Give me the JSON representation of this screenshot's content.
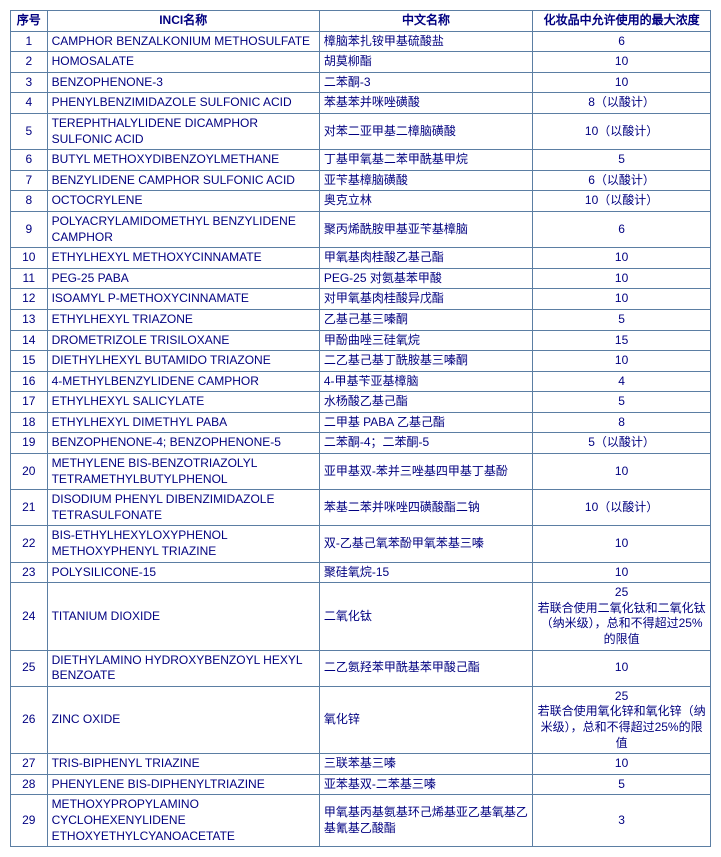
{
  "headers": {
    "idx": "序号",
    "inci": "INCI名称",
    "cn": "中文名称",
    "max": "化妆品中允许使用的最大浓度"
  },
  "rows": [
    {
      "idx": "1",
      "inci": "CAMPHOR BENZALKONIUM METHOSULFATE",
      "cn": "樟脑苯扎铵甲基硫酸盐",
      "max": "6"
    },
    {
      "idx": "2",
      "inci": "HOMOSALATE",
      "cn": "胡莫柳酯",
      "max": "10"
    },
    {
      "idx": "3",
      "inci": "BENZOPHENONE-3",
      "cn": "二苯酮-3",
      "max": "10"
    },
    {
      "idx": "4",
      "inci": "PHENYLBENZIMIDAZOLE SULFONIC ACID",
      "cn": "苯基苯并咪唑磺酸",
      "max": "8（以酸计）"
    },
    {
      "idx": "5",
      "inci": "TEREPHTHALYLIDENE DICAMPHOR SULFONIC ACID",
      "cn": "对苯二亚甲基二樟脑磺酸",
      "max": "10（以酸计）"
    },
    {
      "idx": "6",
      "inci": "BUTYL METHOXYDIBENZOYLMETHANE",
      "cn": "丁基甲氧基二苯甲酰基甲烷",
      "max": "5"
    },
    {
      "idx": "7",
      "inci": "BENZYLIDENE CAMPHOR SULFONIC ACID",
      "cn": "亚苄基樟脑磺酸",
      "max": "6（以酸计）"
    },
    {
      "idx": "8",
      "inci": "OCTOCRYLENE",
      "cn": "奥克立林",
      "max": "10（以酸计）"
    },
    {
      "idx": "9",
      "inci": "POLYACRYLAMIDOMETHYL BENZYLIDENE CAMPHOR",
      "cn": "聚丙烯酰胺甲基亚苄基樟脑",
      "max": "6"
    },
    {
      "idx": "10",
      "inci": "ETHYLHEXYL METHOXYCINNAMATE",
      "cn": "甲氧基肉桂酸乙基己酯",
      "max": "10"
    },
    {
      "idx": "11",
      "inci": "PEG-25 PABA",
      "cn": "PEG-25 对氨基苯甲酸",
      "max": "10"
    },
    {
      "idx": "12",
      "inci": "ISOAMYL P-METHOXYCINNAMATE",
      "cn": "对甲氧基肉桂酸异戊酯",
      "max": "10"
    },
    {
      "idx": "13",
      "inci": "ETHYLHEXYL TRIAZONE",
      "cn": "乙基己基三嗪酮",
      "max": "5"
    },
    {
      "idx": "14",
      "inci": "DROMETRIZOLE TRISILOXANE",
      "cn": "甲酚曲唑三硅氧烷",
      "max": "15"
    },
    {
      "idx": "15",
      "inci": "DIETHYLHEXYL BUTAMIDO TRIAZONE",
      "cn": "二乙基己基丁酰胺基三嗪酮",
      "max": "10"
    },
    {
      "idx": "16",
      "inci": "4-METHYLBENZYLIDENE CAMPHOR",
      "cn": "4-甲基苄亚基樟脑",
      "max": "4"
    },
    {
      "idx": "17",
      "inci": "ETHYLHEXYL SALICYLATE",
      "cn": "水杨酸乙基己酯",
      "max": "5"
    },
    {
      "idx": "18",
      "inci": "ETHYLHEXYL DIMETHYL PABA",
      "cn": "二甲基 PABA 乙基己酯",
      "max": "8"
    },
    {
      "idx": "19",
      "inci": "BENZOPHENONE-4; BENZOPHENONE-5",
      "cn": "二苯酮-4；二苯酮-5",
      "max": "5（以酸计）"
    },
    {
      "idx": "20",
      "inci": "METHYLENE BIS-BENZOTRIAZOLYL TETRAMETHYLBUTYLPHENOL",
      "cn": "亚甲基双-苯并三唑基四甲基丁基酚",
      "max": "10"
    },
    {
      "idx": "21",
      "inci": "DISODIUM PHENYL DIBENZIMIDAZOLE TETRASULFONATE",
      "cn": "苯基二苯并咪唑四磺酸酯二钠",
      "max": "10（以酸计）"
    },
    {
      "idx": "22",
      "inci": "BIS-ETHYLHEXYLOXYPHENOL METHOXYPHENYL TRIAZINE",
      "cn": "双-乙基己氧苯酚甲氧苯基三嗪",
      "max": "10"
    },
    {
      "idx": "23",
      "inci": "POLYSILICONE-15",
      "cn": "聚硅氧烷-15",
      "max": "10"
    },
    {
      "idx": "24",
      "inci": "TITANIUM DIOXIDE",
      "cn": "二氧化钛",
      "max": "25\n若联合使用二氧化钛和二氧化钛（纳米级），总和不得超过25%的限值"
    },
    {
      "idx": "25",
      "inci": "DIETHYLAMINO HYDROXYBENZOYL HEXYL BENZOATE",
      "cn": "二乙氨羟苯甲酰基苯甲酸己酯",
      "max": "10"
    },
    {
      "idx": "26",
      "inci": "ZINC OXIDE",
      "cn": "氧化锌",
      "max": "25\n若联合使用氧化锌和氧化锌（纳米级），总和不得超过25%的限值"
    },
    {
      "idx": "27",
      "inci": "TRIS-BIPHENYL TRIAZINE",
      "cn": "三联苯基三嗪",
      "max": "10"
    },
    {
      "idx": "28",
      "inci": "PHENYLENE BIS-DIPHENYLTRIAZINE",
      "cn": "亚苯基双-二苯基三嗪",
      "max": "5"
    },
    {
      "idx": "29",
      "inci": "METHOXYPROPYLAMINO CYCLOHEXENYLIDENE ETHOXYETHYLCYANOACETATE",
      "cn": "甲氧基丙基氨基环己烯基亚乙基氧基乙基氰基乙酸酯",
      "max": "3"
    }
  ]
}
